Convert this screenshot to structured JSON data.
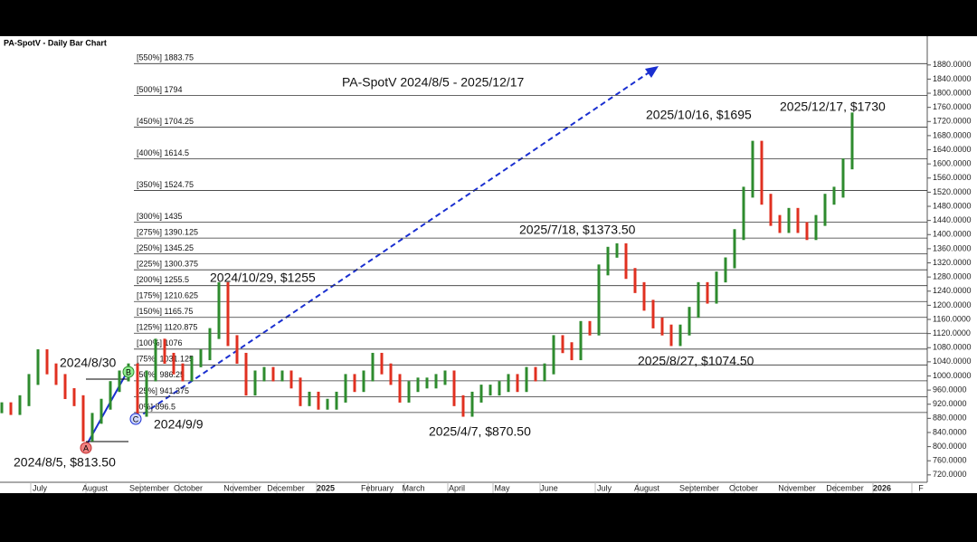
{
  "chart_data": {
    "type": "bar",
    "title": "PA-SpotV - Daily Bar Chart",
    "subtitle": "PA-SpotV 2024/8/5 - 2025/12/17",
    "values": [
      910,
      905,
      930,
      990,
      1060,
      1020,
      990,
      950,
      930,
      830,
      880,
      920,
      970,
      1000,
      1020,
      900,
      1000,
      1090,
      1050,
      1020,
      1000,
      1040,
      1060,
      1120,
      1250,
      1100,
      1050,
      960,
      1000,
      1010,
      1000,
      1000,
      980,
      930,
      940,
      920,
      920,
      940,
      990,
      970,
      1000,
      1050,
      1020,
      990,
      940,
      970,
      980,
      980,
      990,
      1000,
      930,
      900,
      940,
      960,
      960,
      970,
      990,
      970,
      1010,
      1000,
      1020,
      1100,
      1080,
      1060,
      1140,
      1130,
      1300,
      1350,
      1360,
      1290,
      1250,
      1200,
      1150,
      1130,
      1100,
      1130,
      1180,
      1250,
      1220,
      1280,
      1320,
      1400,
      1520,
      1650,
      1500,
      1440,
      1420,
      1460,
      1420,
      1400,
      1440,
      1500,
      1520,
      1600,
      1730
    ],
    "up_color": "#2e8b2e",
    "down_color": "#e03020",
    "ylim": [
      694,
      1923
    ],
    "yticks": [
      {
        "value": 720,
        "label": "720.0000"
      },
      {
        "value": 760,
        "label": "760.0000"
      },
      {
        "value": 800,
        "label": "800.0000"
      },
      {
        "value": 840,
        "label": "840.0000"
      },
      {
        "value": 880,
        "label": "880.0000"
      },
      {
        "value": 920,
        "label": "920.0000"
      },
      {
        "value": 960,
        "label": "960.0000"
      },
      {
        "value": 1000,
        "label": "1000.0000"
      },
      {
        "value": 1040,
        "label": "1040.0000"
      },
      {
        "value": 1080,
        "label": "1080.0000"
      },
      {
        "value": 1120,
        "label": "1120.0000"
      },
      {
        "value": 1160,
        "label": "1160.0000"
      },
      {
        "value": 1200,
        "label": "1200.0000"
      },
      {
        "value": 1240,
        "label": "1240.0000"
      },
      {
        "value": 1280,
        "label": "1280.0000"
      },
      {
        "value": 1320,
        "label": "1320.0000"
      },
      {
        "value": 1360,
        "label": "1360.0000"
      },
      {
        "value": 1400,
        "label": "1400.0000"
      },
      {
        "value": 1440,
        "label": "1440.0000"
      },
      {
        "value": 1480,
        "label": "1480.0000"
      },
      {
        "value": 1520,
        "label": "1520.0000"
      },
      {
        "value": 1560,
        "label": "1560.0000"
      },
      {
        "value": 1600,
        "label": "1600.0000"
      },
      {
        "value": 1640,
        "label": "1640.0000"
      },
      {
        "value": 1680,
        "label": "1680.0000"
      },
      {
        "value": 1720,
        "label": "1720.0000"
      },
      {
        "value": 1760,
        "label": "1760.0000"
      },
      {
        "value": 1800,
        "label": "1800.0000"
      },
      {
        "value": 1840,
        "label": "1840.0000"
      },
      {
        "value": 1880,
        "label": "1880.0000"
      }
    ],
    "xticks": [
      "July",
      "August",
      "September",
      "October",
      "November",
      "December",
      "2025",
      "February",
      "March",
      "April",
      "May",
      "June",
      "July",
      "August",
      "September",
      "October",
      "November",
      "December",
      "2026",
      "F"
    ],
    "levels": [
      {
        "value": 1883.75,
        "label": "[550%] 1883.75"
      },
      {
        "value": 1794,
        "label": "[500%] 1794"
      },
      {
        "value": 1704.25,
        "label": "[450%] 1704.25"
      },
      {
        "value": 1614.5,
        "label": "[400%] 1614.5"
      },
      {
        "value": 1524.75,
        "label": "[350%] 1524.75"
      },
      {
        "value": 1435,
        "label": "[300%] 1435"
      },
      {
        "value": 1390.125,
        "label": "[275%] 1390.125"
      },
      {
        "value": 1345.25,
        "label": "[250%] 1345.25"
      },
      {
        "value": 1300.375,
        "label": "[225%] 1300.375"
      },
      {
        "value": 1255.5,
        "label": "[200%] 1255.5"
      },
      {
        "value": 1210.625,
        "label": "[175%] 1210.625"
      },
      {
        "value": 1165.75,
        "label": "[150%] 1165.75"
      },
      {
        "value": 1120.875,
        "label": "[125%] 1120.875"
      },
      {
        "value": 1076,
        "label": "[100%] 1076"
      },
      {
        "value": 1031.125,
        "label": "[75%] 1031.125"
      },
      {
        "value": 986.25,
        "label": "[50%] 986.25"
      },
      {
        "value": 941.375,
        "label": "[25%] 941.375"
      },
      {
        "value": 896.5,
        "label": "[0%] 896.5"
      }
    ],
    "annotations": [
      "2025/10/16, $1695",
      "2025/12/17, $1730",
      "2025/7/18, $1373.50",
      "2024/10/29, $1255",
      "2024/8/30",
      "2025/8/27, $1074.50",
      "2024/9/9",
      "2025/4/7, $870.50",
      "2024/8/5, $813.50"
    ],
    "markers": [
      "A",
      "B",
      "C"
    ]
  }
}
